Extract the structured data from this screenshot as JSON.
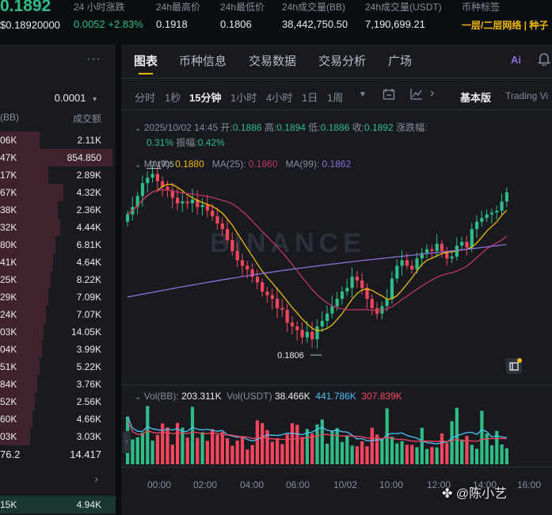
{
  "header": {
    "last_price": "0.1892",
    "sub_price": "$0.18920000",
    "stats": [
      {
        "label": "24 小时涨跌",
        "value": "0.0052 +2.83%",
        "color": "#2ebd85"
      },
      {
        "label": "24h最高价",
        "value": "0.1918",
        "color": "#eaecef"
      },
      {
        "label": "24h最低价",
        "value": "0.1806",
        "color": "#eaecef"
      },
      {
        "label": "24h成交量(BB)",
        "value": "38,442,750.50",
        "color": "#eaecef"
      },
      {
        "label": "24h成交量(USDT)",
        "value": "7,190,699.21",
        "color": "#eaecef"
      },
      {
        "label": "币种标签",
        "value": "一层/二层网络 | 种子",
        "color": "#f0b90b"
      }
    ]
  },
  "orderbook": {
    "more_icon": "more-dots-icon",
    "precision": "0.0001",
    "col_amount": "(BB)",
    "col_total": "成交额",
    "rows": [
      {
        "amount": "06K",
        "total": "2.11K",
        "depth": 0.34
      },
      {
        "amount": "47K",
        "total": "854.850",
        "depth": 0.97
      },
      {
        "amount": "17K",
        "total": "2.89K",
        "depth": 0.42
      },
      {
        "amount": "67K",
        "total": "4.32K",
        "depth": 0.55
      },
      {
        "amount": "38K",
        "total": "2.36K",
        "depth": 0.5
      },
      {
        "amount": "32K",
        "total": "4.44K",
        "depth": 0.52
      },
      {
        "amount": "80K",
        "total": "6.81K",
        "depth": 0.48
      },
      {
        "amount": "41K",
        "total": "4.64K",
        "depth": 0.46
      },
      {
        "amount": "25K",
        "total": "8.22K",
        "depth": 0.44
      },
      {
        "amount": "29K",
        "total": "7.09K",
        "depth": 0.42
      },
      {
        "amount": "24K",
        "total": "7.07K",
        "depth": 0.4
      },
      {
        "amount": "03K",
        "total": "14.05K",
        "depth": 0.38
      },
      {
        "amount": "04K",
        "total": "3.99K",
        "depth": 0.36
      },
      {
        "amount": "51K",
        "total": "5.22K",
        "depth": 0.34
      },
      {
        "amount": "84K",
        "total": "3.76K",
        "depth": 0.32
      },
      {
        "amount": "52K",
        "total": "2.56K",
        "depth": 0.3
      },
      {
        "amount": "60K",
        "total": "4.66K",
        "depth": 0.28
      },
      {
        "amount": "03K",
        "total": "3.03K",
        "depth": 0.26
      }
    ],
    "mid_price": "76.2",
    "mid_total": "14.417",
    "bottom_amount": "15K",
    "bottom_total": "4.94K"
  },
  "chart_panel": {
    "tabs": [
      "图表",
      "币种信息",
      "交易数据",
      "交易分析",
      "广场"
    ],
    "active_tab": 0,
    "timeframes": [
      "分时",
      "1秒",
      "15分钟",
      "1小时",
      "4小时",
      "1日",
      "1周"
    ],
    "active_timeframe": 2,
    "view_basic": "基本版",
    "view_tv": "Trading Vi",
    "ohlc": {
      "date": "2025/10/02 14:45",
      "open_label": "开:",
      "open": "0.1886",
      "high_label": "高:",
      "high": "0.1894",
      "low_label": "低:",
      "low": "0.1886",
      "close_label": "收:",
      "close": "0.1892",
      "change_label": "涨跌幅:",
      "change": "0.31%",
      "amp_label": "振幅:",
      "amp": "0.42%"
    },
    "ma": {
      "ma7_label": "MA(7)",
      "ma7": "0.1880",
      "ma25_label": "MA(25)",
      "ma25": "0.1860",
      "ma99_label": "MA(99)",
      "ma99": "0.1862"
    },
    "volume": {
      "vol_bb_label": "Vol(BB):",
      "vol_bb": "203.311K",
      "vol_usdt_label": "Vol(USDT)",
      "vol_usdt": "38.466K",
      "ma_a": "441.786K",
      "ma_b": "307.839K"
    },
    "high_marker": "0.1905",
    "low_marker": "0.1806",
    "time_labels": [
      "00:00",
      "02:00",
      "04:00",
      "06:00",
      "10/02",
      "10:00",
      "12:00",
      "14:00",
      "16:00"
    ],
    "watermark": "BINANCE",
    "author": "陈小艺"
  },
  "colors": {
    "up": "#2ebd85",
    "down": "#f6465d",
    "ma7": "#f0b90b",
    "ma25": "#c2336b",
    "ma99": "#8e6fd8",
    "accent": "#f0b90b"
  }
}
